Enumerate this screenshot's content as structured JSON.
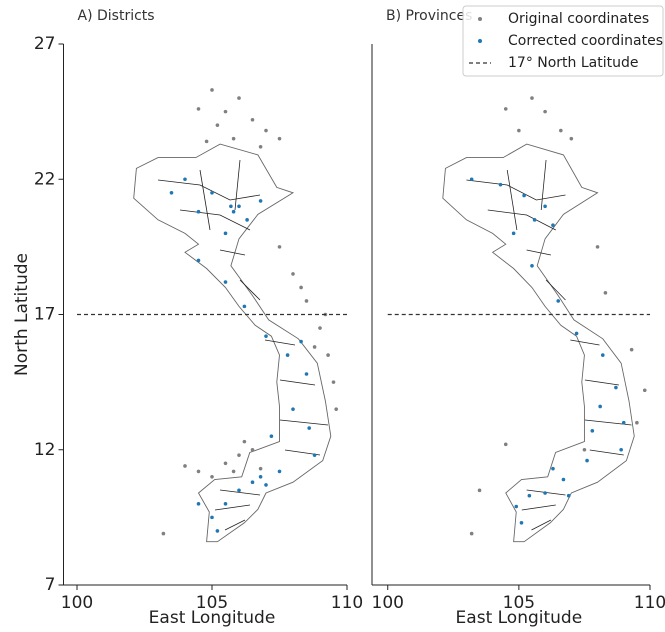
{
  "chart_data": [
    {
      "type": "scatter",
      "title": "A) Districts",
      "xlabel": "East Longitude",
      "ylabel": "North Latitude",
      "xlim": [
        99.5,
        110
      ],
      "ylim": [
        7,
        27
      ],
      "xticks": [
        100,
        105,
        110
      ],
      "yticks": [
        7,
        12,
        17,
        22,
        27
      ],
      "series": [
        {
          "name": "Original coordinates",
          "color": "#808080",
          "x": [
            105.5,
            106,
            105.2,
            106.5,
            107,
            104.5,
            105.8,
            106.8,
            104.8,
            107.5,
            105,
            107.5,
            108,
            108.3,
            108.5,
            109,
            109.3,
            109.5,
            109.6,
            109.2,
            108.8,
            105.5,
            106,
            106.5,
            104.5,
            105,
            106.8,
            104,
            103.2,
            106.2,
            105.8
          ],
          "y": [
            24.5,
            25,
            24,
            24.2,
            23.8,
            24.6,
            23.5,
            23.2,
            23.4,
            23.5,
            25.3,
            19.5,
            18.5,
            18,
            17.5,
            16.5,
            15.5,
            14.5,
            13.5,
            17,
            15.8,
            11.5,
            11.8,
            12,
            11.2,
            11,
            11.3,
            11.4,
            8.9,
            12.3,
            11.2
          ]
        },
        {
          "name": "Corrected coordinates",
          "color": "#1f77b4",
          "x": [
            104,
            105,
            106,
            105.8,
            106.3,
            105.5,
            106.8,
            103.5,
            104.5,
            105.5,
            106.2,
            107,
            107.8,
            108.5,
            108,
            108.6,
            108.8,
            107.5,
            106.5,
            106,
            105.5,
            105,
            105.2,
            104.5,
            107,
            106.8,
            105.7,
            104.5,
            107.2,
            108.3
          ],
          "y": [
            22,
            21.5,
            21,
            20.8,
            20.5,
            20,
            21.2,
            21.5,
            19,
            18.2,
            17.3,
            16.2,
            15.5,
            14.8,
            13.5,
            12.8,
            11.8,
            11.2,
            10.8,
            10.5,
            10,
            9.5,
            9,
            10,
            10.7,
            11,
            21,
            20.8,
            12.5,
            16
          ]
        },
        {
          "name": "17° North Latitude",
          "color": "#333333",
          "style": "dashed",
          "x": [
            100,
            110
          ],
          "y": [
            17,
            17
          ]
        }
      ]
    },
    {
      "type": "scatter",
      "title": "B) Provinces",
      "xlabel": "East Longitude",
      "xlim": [
        99.4,
        110
      ],
      "ylim": [
        7,
        27
      ],
      "xticks": [
        100,
        105,
        110
      ],
      "legend": "upper right",
      "series": [
        {
          "name": "Original coordinates",
          "color": "#808080",
          "x": [
            104.5,
            105.5,
            106,
            107,
            105,
            106.6,
            108,
            108.3,
            109.3,
            109.8,
            109.5,
            104.5,
            103.5,
            103.2,
            107.5
          ],
          "y": [
            24.6,
            25,
            24.5,
            23.5,
            23.8,
            23.8,
            19.5,
            17.8,
            15.7,
            14.2,
            13,
            12.2,
            10.5,
            8.9,
            12
          ]
        },
        {
          "name": "Corrected coordinates",
          "color": "#1f77b4",
          "x": [
            103.2,
            104.3,
            105.2,
            106,
            105.6,
            106.3,
            104.8,
            105.5,
            106.5,
            107.2,
            108.2,
            108.7,
            108.1,
            109,
            108.9,
            107.6,
            106.7,
            106,
            105.4,
            105.1,
            104.9,
            106.3,
            106.9,
            107.8
          ],
          "y": [
            22,
            21.8,
            21.4,
            21,
            20.5,
            20.3,
            20,
            18.8,
            17.5,
            16.3,
            15.5,
            14.3,
            13.6,
            13,
            12,
            11.6,
            10.9,
            10.4,
            10.3,
            9.3,
            9.9,
            11.3,
            10.3,
            12.7
          ]
        },
        {
          "name": "17° North Latitude",
          "color": "#333333",
          "style": "dashed",
          "x": [
            100,
            110
          ],
          "y": [
            17,
            17
          ]
        }
      ]
    }
  ]
}
